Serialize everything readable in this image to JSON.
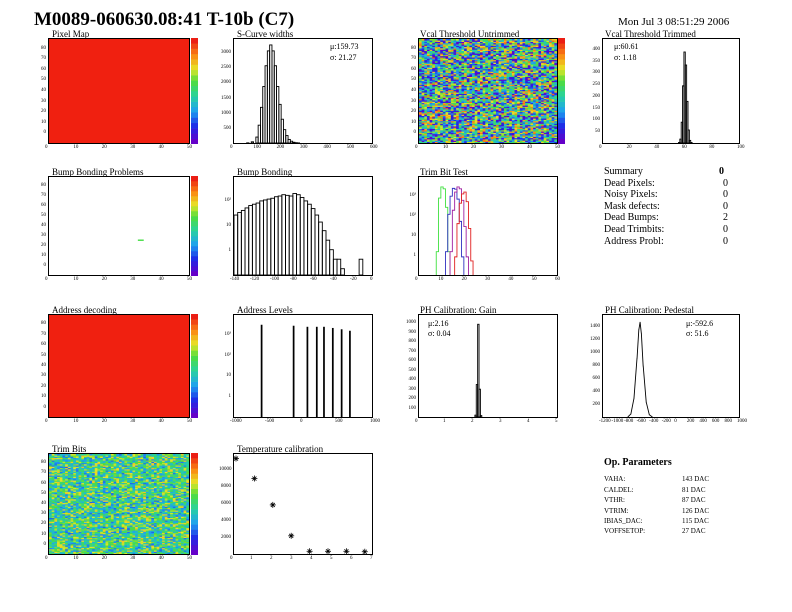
{
  "header": {
    "title": "M0089-060630.08:41 T-10b (C7)",
    "date": "Mon Jul  3 08:51:29 2006"
  },
  "panels": {
    "pixel_map": "Pixel Map",
    "scurve": "S-Curve widths",
    "vcal_untrimmed": "Vcal Threshold Untrimmed",
    "vcal_trimmed": "Vcal Threshold Trimmed",
    "bump_problems": "Bump Bonding Problems",
    "bump_bonding": "Bump Bonding",
    "trim_bit_test": "Trim Bit Test",
    "address_decoding": "Address decoding",
    "address_levels": "Address Levels",
    "ph_gain": "PH Calibration: Gain",
    "ph_pedestal": "PH Calibration: Pedestal",
    "trim_bits": "Trim Bits",
    "temperature": "Temperature calibration"
  },
  "stats": {
    "scurve_mu": "μ:159.73",
    "scurve_sigma": "σ: 21.27",
    "vcal_mu": "μ:60.61",
    "vcal_sigma": "σ: 1.18",
    "gain_mu": "μ:2.16",
    "gain_sigma": "σ: 0.04",
    "ped_mu": "μ:-592.6",
    "ped_sigma": "σ: 51.6"
  },
  "summary": {
    "title": "Summary",
    "total": "0",
    "rows": [
      {
        "label": "Dead Pixels:",
        "value": "0"
      },
      {
        "label": "Noisy Pixels:",
        "value": "0"
      },
      {
        "label": "Mask defects:",
        "value": "0"
      },
      {
        "label": "Dead Bumps:",
        "value": "2"
      },
      {
        "label": "Dead Trimbits:",
        "value": "0"
      },
      {
        "label": "Address Probl:",
        "value": "0"
      }
    ]
  },
  "op_params": {
    "title": "Op. Parameters",
    "rows": [
      {
        "name": "VAHA:",
        "value": "143 DAC"
      },
      {
        "name": "CALDEL:",
        "value": "81 DAC"
      },
      {
        "name": "VTHR:",
        "value": "87 DAC"
      },
      {
        "name": "VTRIM:",
        "value": "126 DAC"
      },
      {
        "name": "IBIAS_DAC:",
        "value": "115 DAC"
      },
      {
        "name": "VOFFSETOP:",
        "value": "27 DAC"
      }
    ]
  },
  "colors": {
    "map_red": "#f02010",
    "hist_line": "#000000",
    "trim_green": "#40e040",
    "trim_blue": "#3030c0",
    "trim_purple": "#a020a0",
    "trim_red": "#e02020"
  },
  "chart_data": [
    {
      "type": "heatmap",
      "title": "Pixel Map",
      "xlim": [
        0,
        52
      ],
      "ylim": [
        0,
        80
      ],
      "uniform_value": 10,
      "x_ticks": [
        "0",
        "10",
        "20",
        "30",
        "40",
        "50"
      ],
      "y_ticks": [
        "0",
        "10",
        "20",
        "30",
        "40",
        "50",
        "60",
        "70",
        "80"
      ]
    },
    {
      "type": "bar",
      "title": "S-Curve widths",
      "xlim": [
        0,
        600
      ],
      "ylim": [
        0,
        3500
      ],
      "x_ticks": [
        "0",
        "100",
        "200",
        "300",
        "400",
        "500",
        "600"
      ],
      "y_ticks": [
        "500",
        "1000",
        "1500",
        "2000",
        "2500",
        "3000"
      ],
      "x": [
        60,
        80,
        100,
        110,
        120,
        130,
        140,
        150,
        160,
        170,
        180,
        190,
        200,
        210,
        220,
        230,
        240,
        250,
        260,
        270,
        280
      ],
      "values": [
        5,
        40,
        200,
        600,
        1200,
        1900,
        2600,
        3100,
        3300,
        3100,
        2600,
        1900,
        1300,
        800,
        450,
        250,
        120,
        60,
        25,
        10,
        3
      ]
    },
    {
      "type": "heatmap",
      "title": "Vcal Threshold Untrimmed",
      "xlim": [
        0,
        52
      ],
      "ylim": [
        0,
        80
      ],
      "x_ticks": [
        "0",
        "10",
        "20",
        "30",
        "40",
        "50"
      ],
      "y_ticks": [
        "0",
        "10",
        "20",
        "30",
        "40",
        "50",
        "60",
        "70",
        "80"
      ],
      "palette_ticks": [
        "80",
        "90",
        "100",
        "110"
      ]
    },
    {
      "type": "bar",
      "title": "Vcal Threshold Trimmed",
      "xlim": [
        0,
        100
      ],
      "ylim": [
        0,
        400
      ],
      "x_ticks": [
        "0",
        "20",
        "40",
        "60",
        "80",
        "100"
      ],
      "y_ticks": [
        "50",
        "100",
        "150",
        "200",
        "250",
        "300",
        "350",
        "400"
      ],
      "x": [
        56,
        57,
        58,
        59,
        60,
        61,
        62,
        63,
        64,
        65
      ],
      "values": [
        2,
        15,
        80,
        220,
        350,
        300,
        160,
        50,
        10,
        2
      ]
    },
    {
      "type": "heatmap",
      "title": "Bump Bonding Problems",
      "xlim": [
        0,
        52
      ],
      "ylim": [
        0,
        80
      ],
      "x_ticks": [
        "0",
        "10",
        "20",
        "30",
        "40",
        "50"
      ],
      "y_ticks": [
        "0",
        "10",
        "20",
        "30",
        "40",
        "50",
        "60",
        "70",
        "80"
      ],
      "palette_ticks": [
        "0.1",
        "0.2",
        "0.3",
        "0.4",
        "0.5",
        "0.6",
        "0.7",
        "0.8",
        "0.9",
        "1.0"
      ],
      "hot_pixels": [
        [
          33,
          29
        ],
        [
          34,
          29
        ]
      ]
    },
    {
      "type": "bar",
      "title": "Bump Bonding",
      "log_y": true,
      "xlim": [
        -140,
        10
      ],
      "x_ticks": [
        "-140",
        "-120",
        "-100",
        "-80",
        "-60",
        "-40",
        "-20",
        "0"
      ],
      "y_ticks": [
        "1",
        "10",
        "10²"
      ],
      "x": [
        -138,
        -134,
        -130,
        -126,
        -122,
        -118,
        -114,
        -110,
        -106,
        -102,
        -98,
        -94,
        -90,
        -86,
        -82,
        -78,
        -74,
        -70,
        -66,
        -62,
        -58,
        -54,
        -50,
        -46,
        -42,
        -38,
        -34,
        -30,
        -26,
        -22,
        -2
      ],
      "values": [
        25,
        30,
        35,
        42,
        50,
        55,
        60,
        70,
        75,
        80,
        85,
        95,
        100,
        110,
        105,
        100,
        120,
        110,
        90,
        70,
        55,
        40,
        25,
        15,
        8,
        4,
        2,
        1,
        1,
        0.5,
        1
      ]
    },
    {
      "type": "line",
      "title": "Trim Bit Test",
      "log_y": true,
      "xlim": [
        0,
        60
      ],
      "x_ticks": [
        "0",
        "10",
        "20",
        "30",
        "40",
        "50",
        "60"
      ],
      "y_ticks": [
        "1",
        "10",
        "10²",
        "10³"
      ],
      "series": [
        {
          "color": "#40e040",
          "x": [
            8,
            9,
            10,
            11,
            12,
            13
          ],
          "values": [
            5,
            1000,
            3000,
            2500,
            400,
            5
          ]
        },
        {
          "color": "#3030c0",
          "x": [
            12,
            13,
            14,
            15,
            16,
            17,
            18,
            19
          ],
          "values": [
            5,
            200,
            1200,
            2600,
            2400,
            900,
            100,
            3
          ]
        },
        {
          "color": "#a020a0",
          "x": [
            14,
            15,
            16,
            17,
            18,
            19,
            20,
            21
          ],
          "values": [
            5,
            300,
            1800,
            3000,
            2500,
            800,
            60,
            3
          ]
        },
        {
          "color": "#e02020",
          "x": [
            16,
            17,
            18,
            19,
            20,
            21,
            22,
            23
          ],
          "values": [
            3,
            80,
            600,
            1500,
            1800,
            700,
            50,
            2
          ]
        }
      ]
    },
    {
      "type": "heatmap",
      "title": "Address decoding",
      "xlim": [
        0,
        52
      ],
      "ylim": [
        0,
        80
      ],
      "uniform_value": 1,
      "x_ticks": [
        "0",
        "10",
        "20",
        "30",
        "40",
        "50"
      ],
      "y_ticks": [
        "0",
        "10",
        "20",
        "30",
        "40",
        "50",
        "60",
        "70",
        "80"
      ],
      "palette_ticks": [
        "0.1",
        "0.2",
        "0.3",
        "0.4",
        "0.5",
        "0.6",
        "0.7",
        "0.8",
        "0.9",
        "1"
      ]
    },
    {
      "type": "bar",
      "title": "Address Levels",
      "log_y": true,
      "xlim": [
        -1500,
        1000
      ],
      "x_ticks": [
        "-1000",
        "-500",
        "0",
        "500",
        "1000"
      ],
      "y_ticks": [
        "1",
        "10",
        "10²",
        "10³"
      ],
      "x": [
        -1000,
        -420,
        -170,
        0,
        130,
        290,
        450,
        600
      ],
      "values": [
        1200,
        1100,
        1000,
        1000,
        1000,
        900,
        800,
        700
      ]
    },
    {
      "type": "bar",
      "title": "PH Calibration: Gain",
      "xlim": [
        0,
        5
      ],
      "ylim": [
        0,
        1100
      ],
      "x_ticks": [
        "0",
        "1",
        "2",
        "3",
        "4",
        "5"
      ],
      "y_ticks": [
        "100",
        "200",
        "300",
        "400",
        "500",
        "600",
        "700",
        "800",
        "900",
        "1000"
      ],
      "x": [
        2.05,
        2.1,
        2.15,
        2.2,
        2.25
      ],
      "values": [
        20,
        350,
        1000,
        300,
        15
      ]
    },
    {
      "type": "line",
      "title": "PH Calibration: Pedestal",
      "xlim": [
        -1200,
        1000
      ],
      "ylim": [
        0,
        1400
      ],
      "x_ticks": [
        "-1200",
        "-1000",
        "-800",
        "-600",
        "-400",
        "-200",
        "0",
        "200",
        "400",
        "600",
        "800",
        "1000"
      ],
      "y_ticks": [
        "200",
        "400",
        "600",
        "800",
        "1000",
        "1200",
        "1400"
      ],
      "x": [
        -800,
        -750,
        -700,
        -650,
        -620,
        -600,
        -580,
        -550,
        -500,
        -450,
        -400
      ],
      "values": [
        0,
        40,
        250,
        800,
        1200,
        1300,
        1150,
        700,
        200,
        30,
        0
      ]
    },
    {
      "type": "heatmap",
      "title": "Trim Bits",
      "xlim": [
        0,
        52
      ],
      "ylim": [
        0,
        80
      ],
      "x_ticks": [
        "0",
        "10",
        "20",
        "30",
        "40",
        "50"
      ],
      "y_ticks": [
        "0",
        "10",
        "20",
        "30",
        "40",
        "50",
        "60",
        "70",
        "80"
      ]
    },
    {
      "type": "scatter",
      "title": "Temperature calibration",
      "xlim": [
        0,
        7.5
      ],
      "ylim": [
        0,
        11000
      ],
      "x_ticks": [
        "0",
        "1",
        "2",
        "3",
        "4",
        "5",
        "6",
        "7"
      ],
      "y_ticks": [
        "2000",
        "4000",
        "6000",
        "8000",
        "10000"
      ],
      "x": [
        0,
        1,
        2,
        3,
        4,
        5,
        6,
        7
      ],
      "values": [
        10500,
        8300,
        5400,
        2000,
        300,
        300,
        300,
        250
      ]
    }
  ]
}
